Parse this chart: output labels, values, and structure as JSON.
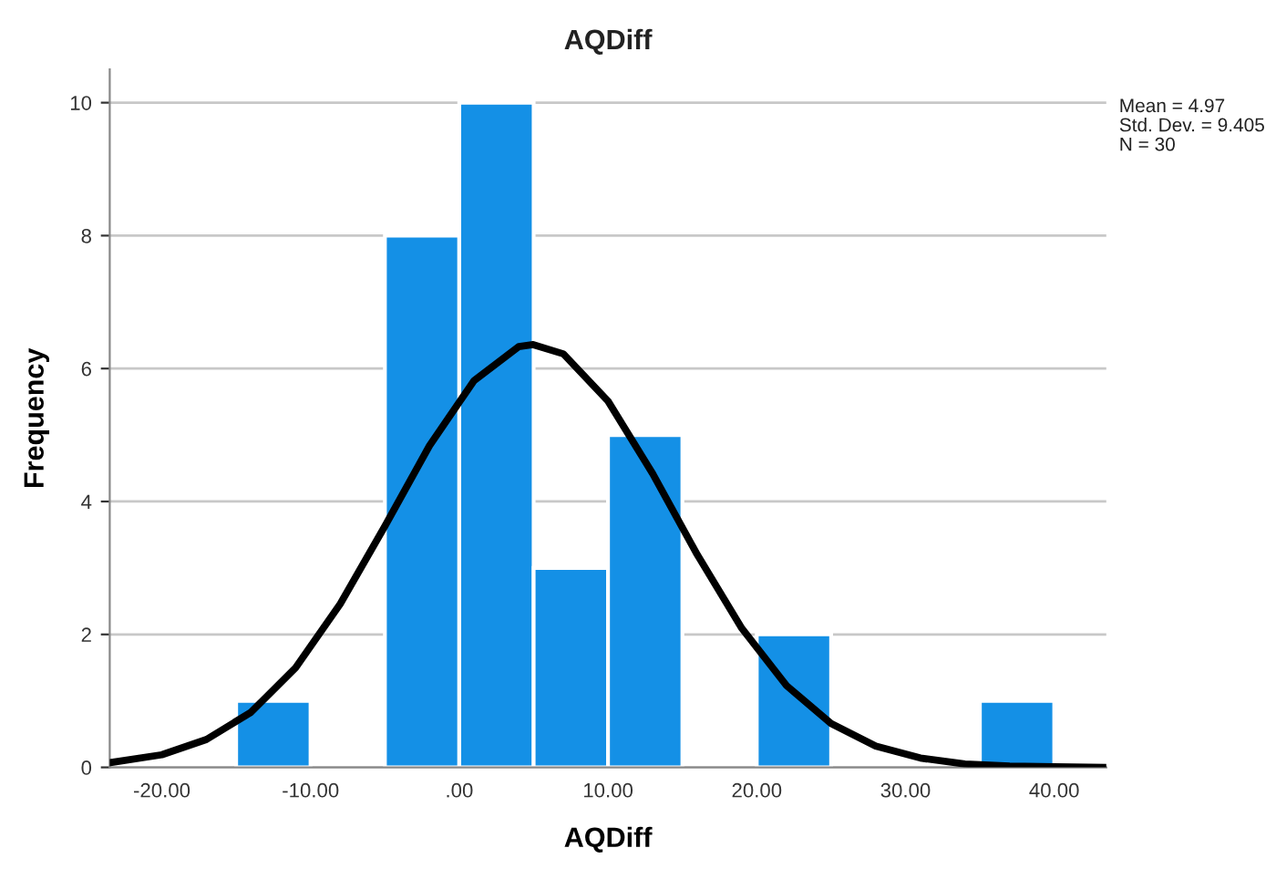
{
  "chart_data": {
    "type": "histogram",
    "title": "AQDiff",
    "xlabel": "AQDiff",
    "ylabel": "Frequency",
    "series": [
      {
        "color": "#1490e6",
        "bins": [
          -15,
          -10,
          -5,
          0,
          5,
          10,
          15,
          20,
          25,
          30,
          35,
          40
        ],
        "values": [
          1,
          0,
          8,
          10,
          3,
          5,
          0,
          2,
          0,
          0,
          1
        ]
      },
      {
        "type": "line",
        "color": "#000000",
        "x": [
          -23.5,
          -20,
          -17,
          -14,
          -11,
          -8,
          -5,
          -2,
          1,
          4,
          4.97,
          7,
          10,
          13,
          16,
          19,
          22,
          25,
          28,
          31,
          34,
          37,
          40,
          43.5
        ],
        "values": [
          0.07,
          0.19,
          0.42,
          0.83,
          1.5,
          2.46,
          3.63,
          4.84,
          5.82,
          6.33,
          6.36,
          6.22,
          5.51,
          4.42,
          3.2,
          2.09,
          1.23,
          0.66,
          0.32,
          0.14,
          0.05,
          0.02,
          0.01,
          0.0
        ]
      }
    ],
    "xlim": [
      -23.5,
      43.5
    ],
    "ylim": [
      0,
      10.5
    ],
    "xticks": [
      {
        "value": -20,
        "label": "-20.00"
      },
      {
        "value": -10,
        "label": "-10.00"
      },
      {
        "value": 0,
        "label": ".00"
      },
      {
        "value": 10,
        "label": "10.00"
      },
      {
        "value": 20,
        "label": "20.00"
      },
      {
        "value": 30,
        "label": "30.00"
      },
      {
        "value": 40,
        "label": "40.00"
      }
    ],
    "yticks": [
      0,
      2,
      4,
      6,
      8,
      10
    ],
    "grid": "y",
    "annotations": [
      "Mean = 4.97",
      "Std. Dev. = 9.405",
      "N = 30"
    ]
  }
}
